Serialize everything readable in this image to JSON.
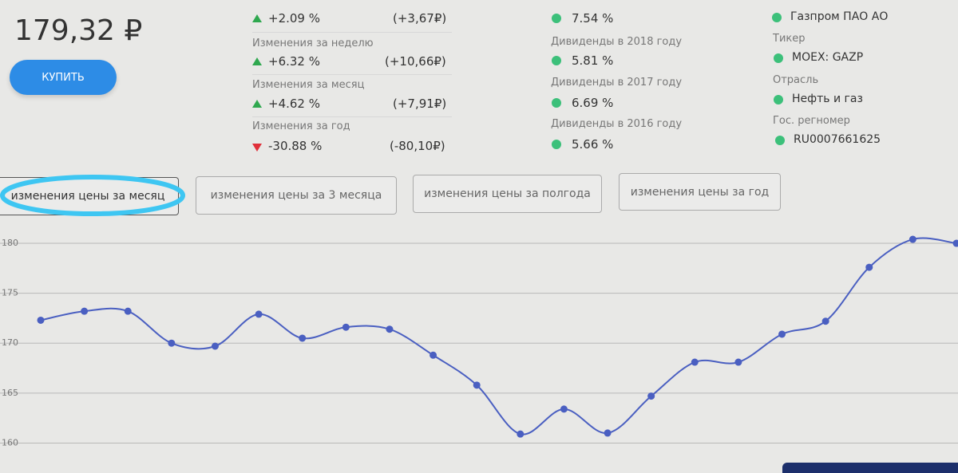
{
  "price": "179,32 ₽",
  "buy_button": "КУПИТЬ",
  "changes": [
    {
      "percent": "+2.09 %",
      "amount": "(+3,67₽)"
    },
    {
      "label": "Изменения за неделю",
      "percent": "+6.32 %",
      "amount": "(+10,66₽)"
    },
    {
      "label": "Изменения за месяц",
      "percent": "+4.62 %",
      "amount": "(+7,91₽)"
    },
    {
      "label": "Изменения за год",
      "percent": "-30.88 %",
      "amount": "(-80,10₽)"
    }
  ],
  "dividends": [
    {
      "value": "7.54 %"
    },
    {
      "label": "Дивиденды в 2018 году",
      "value": "5.81 %"
    },
    {
      "label": "Дивиденды в 2017 году",
      "value": "6.69 %"
    },
    {
      "label": "Дивиденды в 2016 году",
      "value": "5.66 %"
    }
  ],
  "info": {
    "company": "Газпром ПАО АО",
    "ticker_label": "Тикер",
    "ticker": "MOEX: GAZP",
    "sector_label": "Отрасль",
    "sector": "Нефть и газ",
    "reg_label": "Гос. регномер",
    "reg": "RU0007661625"
  },
  "tabs": [
    "изменения цены за месяц",
    "изменения цены за 3 месяца",
    "изменения цены за полгода",
    "изменения цены за год"
  ],
  "chart_data": {
    "type": "line",
    "categories": [
      null,
      null,
      null,
      null,
      null,
      null,
      null,
      null,
      null,
      null,
      null,
      null,
      null,
      null,
      null,
      null,
      null,
      null,
      null,
      null,
      null,
      null
    ],
    "series": [
      {
        "color": "#4a5fc1",
        "values": [
          172.3,
          173.2,
          173.2,
          170.0,
          169.7,
          172.9,
          170.5,
          171.6,
          171.4,
          168.8,
          165.8,
          160.9,
          163.4,
          161.0,
          164.7,
          168.1,
          168.1,
          170.9,
          172.2,
          177.6,
          180.4,
          180.0
        ]
      }
    ],
    "ylim": [
      157,
      182
    ],
    "yticks": [
      160,
      165,
      170,
      175,
      180
    ],
    "grid": true
  }
}
